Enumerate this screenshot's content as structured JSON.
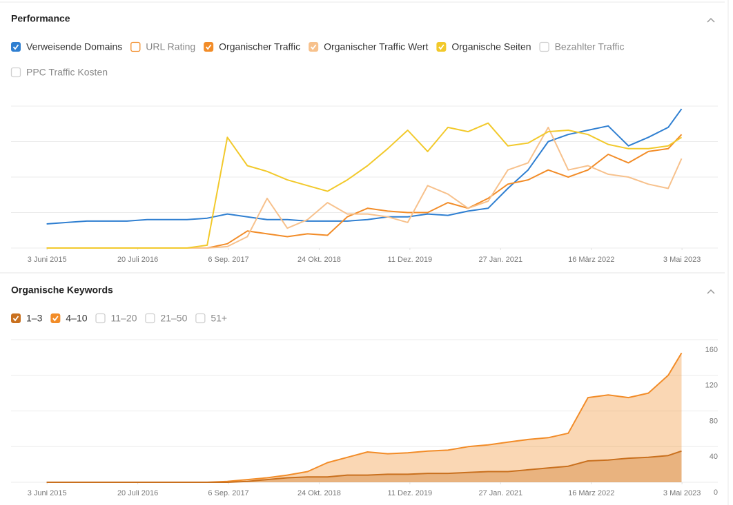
{
  "chart_data": [
    {
      "type": "line",
      "title": "Performance",
      "x": [
        "2015-06-01",
        "2015-09-01",
        "2015-12-01",
        "2016-03-01",
        "2016-06-01",
        "2016-09-01",
        "2016-12-01",
        "2017-03-01",
        "2017-06-01",
        "2017-09-01",
        "2017-12-01",
        "2018-03-01",
        "2018-06-01",
        "2018-09-01",
        "2018-12-01",
        "2019-03-01",
        "2019-06-01",
        "2019-09-01",
        "2019-12-01",
        "2020-03-01",
        "2020-06-01",
        "2020-09-01",
        "2020-12-01",
        "2021-03-01",
        "2021-06-01",
        "2021-09-01",
        "2021-12-01",
        "2022-03-01",
        "2022-06-01",
        "2022-09-01",
        "2022-12-01",
        "2023-03-01",
        "2023-05-01"
      ],
      "xlim": [
        "2014-12-21",
        "2023-10-13"
      ],
      "xticks": [
        {
          "value": "2015-06-03",
          "label": "3 Juni 2015"
        },
        {
          "value": "2016-07-20",
          "label": "20 Juli 2016"
        },
        {
          "value": "2017-09-06",
          "label": "6 Sep. 2017"
        },
        {
          "value": "2018-10-24",
          "label": "24 Okt. 2018"
        },
        {
          "value": "2019-12-11",
          "label": "11 Dez. 2019"
        },
        {
          "value": "2021-01-27",
          "label": "27 Jan. 2021"
        },
        {
          "value": "2022-03-16",
          "label": "16 März 2022"
        },
        {
          "value": "2023-05-03",
          "label": "3 Mai 2023"
        }
      ],
      "ylim": [
        0,
        100
      ],
      "series": [
        {
          "name": "Verweisende Domains",
          "checked": true,
          "color": "#2f7fd1",
          "values": [
            17,
            18,
            19,
            19,
            19,
            20,
            20,
            20,
            21,
            24,
            22,
            20,
            20,
            19,
            19,
            19,
            20,
            22,
            22,
            24,
            23,
            26,
            28,
            42,
            55,
            75,
            80,
            83,
            86,
            72,
            78,
            85,
            98
          ]
        },
        {
          "name": "URL Rating",
          "checked": false,
          "color": "#f28c28"
        },
        {
          "name": "Organischer Traffic",
          "checked": true,
          "color": "#f28c28",
          "values": [
            0,
            0,
            0,
            0,
            0,
            0,
            0,
            0,
            0,
            3,
            12,
            10,
            8,
            10,
            9,
            22,
            28,
            26,
            25,
            25,
            32,
            28,
            35,
            45,
            48,
            55,
            50,
            55,
            66,
            60,
            68,
            70,
            80
          ]
        },
        {
          "name": "Organischer Traffic Wert",
          "checked": true,
          "color": "#f7c18c",
          "values": [
            0,
            0,
            0,
            0,
            0,
            0,
            0,
            0,
            0,
            1,
            8,
            35,
            14,
            20,
            32,
            24,
            24,
            22,
            18,
            44,
            38,
            28,
            33,
            55,
            60,
            85,
            55,
            58,
            52,
            50,
            45,
            42,
            63
          ]
        },
        {
          "name": "Organische Seiten",
          "checked": true,
          "color": "#f2c92b",
          "values": [
            0,
            0,
            0,
            0,
            0,
            0,
            0,
            0,
            2,
            78,
            58,
            54,
            48,
            44,
            40,
            48,
            58,
            70,
            83,
            68,
            85,
            82,
            88,
            72,
            74,
            82,
            83,
            80,
            73,
            70,
            70,
            72,
            78
          ]
        },
        {
          "name": "Bezahlter Traffic",
          "checked": false,
          "color": "#cccccc"
        },
        {
          "name": "PPC Traffic Kosten",
          "checked": false,
          "color": "#cccccc"
        }
      ]
    },
    {
      "type": "area",
      "title": "Organische Keywords",
      "x": [
        "2015-06-01",
        "2015-09-01",
        "2015-12-01",
        "2016-03-01",
        "2016-06-01",
        "2016-09-01",
        "2016-12-01",
        "2017-03-01",
        "2017-06-01",
        "2017-09-01",
        "2017-12-01",
        "2018-03-01",
        "2018-06-01",
        "2018-09-01",
        "2018-12-01",
        "2019-03-01",
        "2019-06-01",
        "2019-09-01",
        "2019-12-01",
        "2020-03-01",
        "2020-06-01",
        "2020-09-01",
        "2020-12-01",
        "2021-03-01",
        "2021-06-01",
        "2021-09-01",
        "2021-12-01",
        "2022-03-01",
        "2022-06-01",
        "2022-09-01",
        "2022-12-01",
        "2023-03-01",
        "2023-05-01"
      ],
      "xlim": [
        "2014-12-21",
        "2023-10-13"
      ],
      "xticks": [
        {
          "value": "2015-06-03",
          "label": "3 Juni 2015"
        },
        {
          "value": "2016-07-20",
          "label": "20 Juli 2016"
        },
        {
          "value": "2017-09-06",
          "label": "6 Sep. 2017"
        },
        {
          "value": "2018-10-24",
          "label": "24 Okt. 2018"
        },
        {
          "value": "2019-12-11",
          "label": "11 Dez. 2019"
        },
        {
          "value": "2021-01-27",
          "label": "27 Jan. 2021"
        },
        {
          "value": "2022-03-16",
          "label": "16 März 2022"
        },
        {
          "value": "2023-05-03",
          "label": "3 Mai 2023"
        }
      ],
      "ylim": [
        0,
        160
      ],
      "yticks": [
        0,
        40,
        80,
        120,
        160
      ],
      "grid": true,
      "series": [
        {
          "name": "1–3",
          "checked": true,
          "color": "#c9701e",
          "values": [
            0,
            0,
            0,
            0,
            0,
            0,
            0,
            0,
            0,
            0,
            1,
            3,
            5,
            6,
            6,
            8,
            8,
            9,
            9,
            10,
            10,
            11,
            12,
            12,
            14,
            16,
            18,
            24,
            25,
            27,
            28,
            30,
            35
          ]
        },
        {
          "name": "4–10",
          "checked": true,
          "color": "#f28c28",
          "values": [
            0,
            0,
            0,
            0,
            0,
            0,
            0,
            0,
            0,
            1,
            3,
            5,
            8,
            12,
            22,
            28,
            34,
            32,
            33,
            35,
            36,
            40,
            42,
            45,
            48,
            50,
            55,
            95,
            98,
            95,
            100,
            120,
            145
          ]
        },
        {
          "name": "11–20",
          "checked": false,
          "color": "#cccccc"
        },
        {
          "name": "21–50",
          "checked": false,
          "color": "#cccccc"
        },
        {
          "name": "51+",
          "checked": false,
          "color": "#cccccc"
        }
      ]
    }
  ]
}
